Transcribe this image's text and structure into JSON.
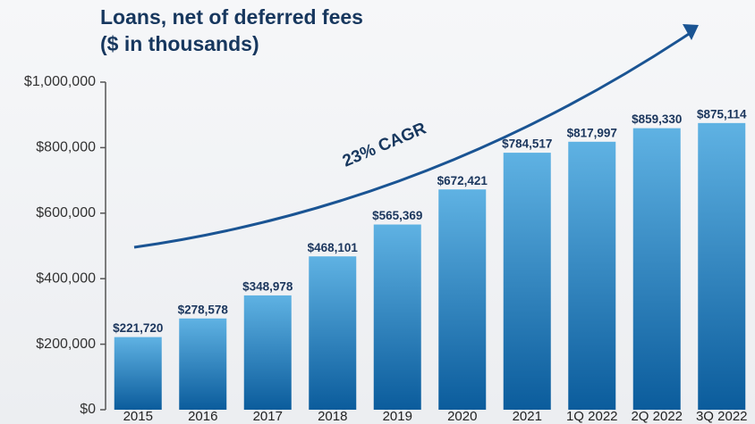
{
  "chart_data": {
    "type": "bar",
    "title": [
      "Loans, net of deferred fees",
      "($ in thousands)"
    ],
    "annotation": "23% CAGR",
    "categories": [
      "2015",
      "2016",
      "2017",
      "2018",
      "2019",
      "2020",
      "2021",
      "1Q 2022",
      "2Q 2022",
      "3Q 2022"
    ],
    "values": [
      221720,
      278578,
      348978,
      468101,
      565369,
      672421,
      784517,
      817997,
      859330,
      875114
    ],
    "value_labels": [
      "$221,720",
      "$278,578",
      "$348,978",
      "$468,101",
      "$565,369",
      "$672,421",
      "$784,517",
      "$817,997",
      "$859,330",
      "$875,114"
    ],
    "color": [
      "#5fb2e3",
      "#0b5c9c"
    ],
    "ylim": [
      0,
      1000000
    ],
    "yticks": [
      {
        "value": 0,
        "label": "$0"
      },
      {
        "value": 200000,
        "label": "$200,000"
      },
      {
        "value": 400000,
        "label": "$400,000"
      },
      {
        "value": 600000,
        "label": "$600,000"
      },
      {
        "value": 800000,
        "label": "$800,000"
      },
      {
        "value": 1000000,
        "label": "$1,000,000"
      }
    ],
    "grid": false
  }
}
